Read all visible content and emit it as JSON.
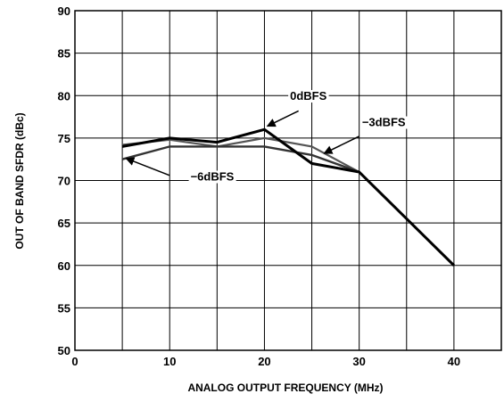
{
  "chart_data": {
    "type": "line",
    "xlabel": "ANALOG OUTPUT FREQUENCY (MHz)",
    "ylabel": "OUT OF BAND SFDR (dBc)",
    "xlim": [
      0,
      45
    ],
    "ylim": [
      50,
      90
    ],
    "x_ticks": [
      0,
      10,
      20,
      30,
      40
    ],
    "y_ticks": [
      50,
      55,
      60,
      65,
      70,
      75,
      80,
      85,
      90
    ],
    "x_gridlines": [
      0,
      5,
      10,
      15,
      20,
      25,
      30,
      35,
      40,
      45
    ],
    "grid": true,
    "series": [
      {
        "name": "0dBFS",
        "color": "#000000",
        "points": [
          [
            5,
            74
          ],
          [
            10,
            75
          ],
          [
            15,
            74.5
          ],
          [
            20,
            76
          ],
          [
            25,
            72
          ],
          [
            30,
            71
          ],
          [
            40,
            60
          ]
        ]
      },
      {
        "name": "−3dBFS",
        "color": "#555555",
        "points": [
          [
            5,
            74.2
          ],
          [
            10,
            74.8
          ],
          [
            15,
            74
          ],
          [
            20,
            75
          ],
          [
            25,
            74
          ],
          [
            30,
            71
          ],
          [
            40,
            60
          ]
        ]
      },
      {
        "name": "−6dBFS",
        "color": "#333333",
        "points": [
          [
            5,
            72.5
          ],
          [
            10,
            74
          ],
          [
            15,
            74
          ],
          [
            20,
            74
          ],
          [
            25,
            73
          ],
          [
            30,
            71
          ],
          [
            40,
            60
          ]
        ]
      }
    ],
    "annotations": [
      {
        "text": "0dBFS",
        "series": "0dBFS"
      },
      {
        "text": "−3dBFS",
        "series": "−3dBFS"
      },
      {
        "text": "−6dBFS",
        "series": "−6dBFS"
      }
    ]
  }
}
